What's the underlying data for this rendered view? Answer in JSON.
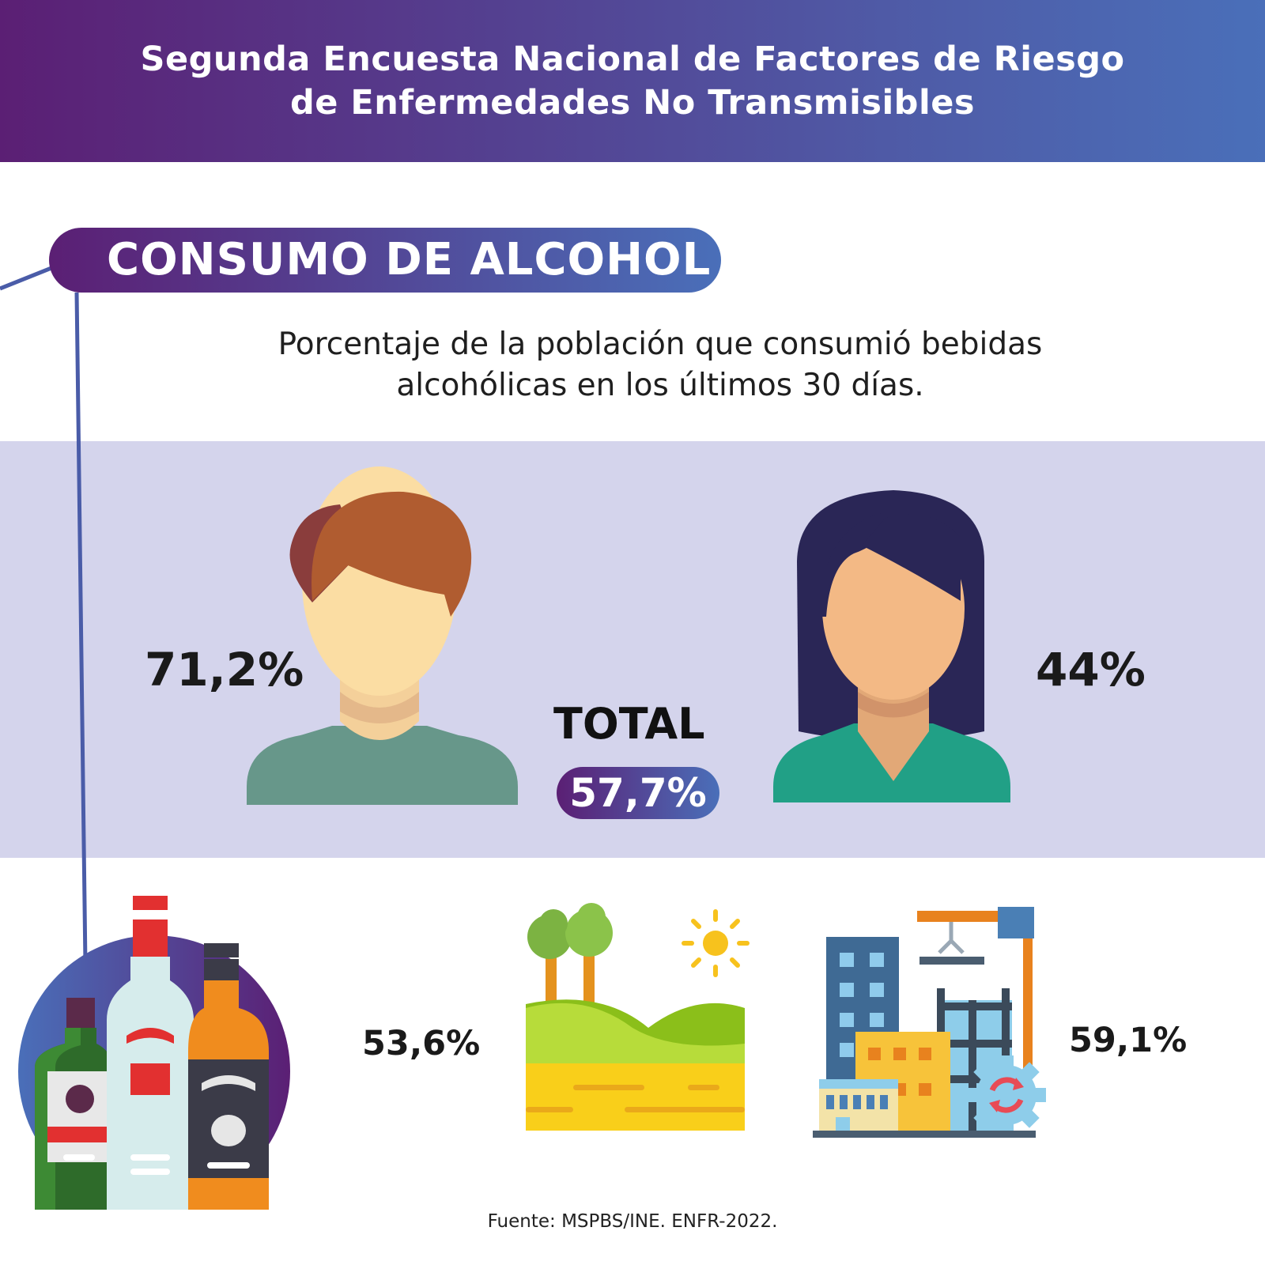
{
  "header": {
    "title": "Segunda Encuesta Nacional de Factores de Riesgo de Enfermedades No Transmisibles"
  },
  "section": {
    "title": "CONSUMO DE ALCOHOL",
    "subtitle": "Porcentaje de la población que consumió bebidas alcohólicas en los últimos 30 días."
  },
  "stats": {
    "men": "71,2%",
    "women": "44%",
    "total_label": "TOTAL",
    "total_value": "57,7%",
    "rural": "53,6%",
    "urban": "59,1%"
  },
  "footer": {
    "source": "Fuente: MSPBS/INE. ENFR-2022."
  },
  "colors": {
    "purple": "#5b1f74",
    "blue": "#4a6fb9",
    "band": "#d4d4ec"
  },
  "icons": [
    "man-icon",
    "woman-icon",
    "alcohol-bottles-icon",
    "rural-landscape-icon",
    "urban-city-icon",
    "sun-icon"
  ]
}
